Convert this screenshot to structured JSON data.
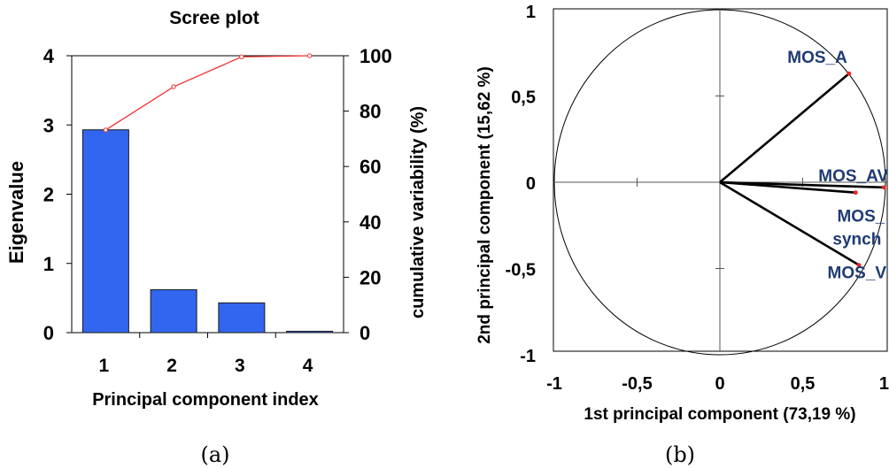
{
  "chart_data": [
    {
      "type": "bar",
      "title": "Scree plot",
      "xlabel": "Principal component index",
      "ylabel": "Eigenvalue",
      "y2label": "cumulative variability (%)",
      "categories": [
        "1",
        "2",
        "3",
        "4"
      ],
      "ylim": [
        0,
        4
      ],
      "y2lim": [
        0,
        100
      ],
      "yticks": [
        "0",
        "1",
        "2",
        "3",
        "4"
      ],
      "y2ticks": [
        "0",
        "20",
        "40",
        "60",
        "80",
        "100"
      ],
      "series": [
        {
          "type": "bar",
          "values": [
            2.93,
            0.62,
            0.43,
            0.02
          ],
          "color": "#3366ee",
          "axis": "left"
        },
        {
          "type": "line",
          "values": [
            73.19,
            88.81,
            99.6,
            100
          ],
          "color": "#ee3333",
          "axis": "right"
        }
      ],
      "caption": "(a)"
    },
    {
      "type": "scatter",
      "subtype": "correlation-circle",
      "xlabel": "1st principal component  (73,19 %)",
      "ylabel": "2nd principal component  (15,62 %)",
      "xlim": [
        -1,
        1
      ],
      "ylim": [
        -1,
        1
      ],
      "xticks": [
        "-1",
        "-0,5",
        "0",
        "0,5",
        "1"
      ],
      "yticks": [
        "-1",
        "-0,5",
        "0",
        "0,5",
        "1"
      ],
      "label_color": "#1f3b73",
      "points": [
        {
          "label": "MOS_A",
          "x": 0.78,
          "y": 0.63
        },
        {
          "label": "MOS_AV",
          "x": 0.99,
          "y": -0.03
        },
        {
          "label": "MOS_",
          "label2": "synch",
          "x": 0.82,
          "y": -0.06
        },
        {
          "label": "MOS_V",
          "x": 0.84,
          "y": -0.48
        }
      ],
      "caption": "(b)"
    }
  ]
}
